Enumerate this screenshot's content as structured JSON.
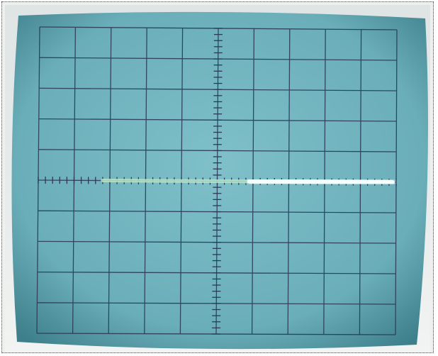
{
  "photo": {
    "subject": "",
    "colors": {
      "screen": "#6fb3be",
      "screen_dark": "#3f8791",
      "grid": "#2b3a57",
      "trace_dim": "#b9e6c6",
      "trace_bright": "#f4fffb",
      "bezel": "#e6eaea"
    },
    "graticule": {
      "divisions_x": 10,
      "divisions_y": 10
    },
    "trace": {
      "level_division": 5.0,
      "start_division": 1.8,
      "bright_from_division": 5.9,
      "end_division": 9.9
    }
  }
}
